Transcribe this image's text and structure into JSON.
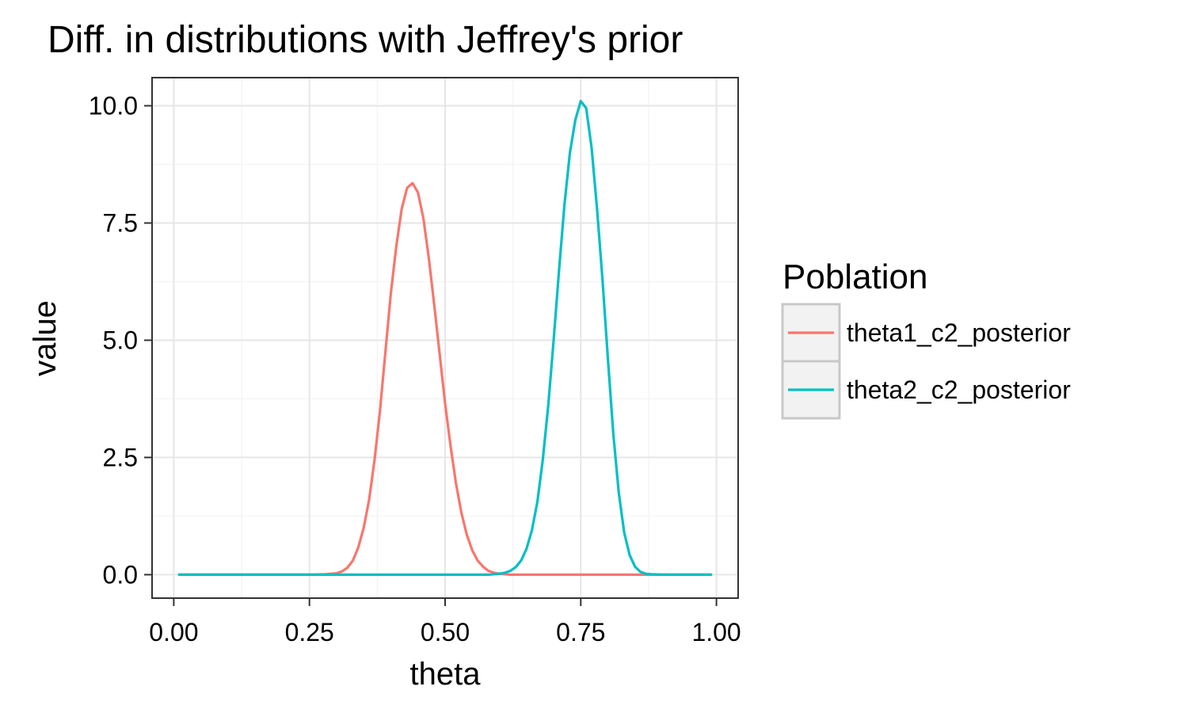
{
  "chart_data": {
    "type": "line",
    "title": "Diff. in distributions with Jeffrey's prior",
    "xlabel": "theta",
    "ylabel": "value",
    "xlim": [
      -0.04,
      1.04
    ],
    "ylim": [
      -0.5,
      10.6
    ],
    "x_ticks": [
      "0.00",
      "0.25",
      "0.50",
      "0.75",
      "1.00"
    ],
    "x_tick_values": [
      0,
      0.25,
      0.5,
      0.75,
      1.0
    ],
    "y_ticks": [
      "0.0",
      "2.5",
      "5.0",
      "7.5",
      "10.0"
    ],
    "y_tick_values": [
      0,
      2.5,
      5.0,
      7.5,
      10.0
    ],
    "grid": true,
    "legend": {
      "title": "Poblation",
      "position": "right"
    },
    "x": [
      0.01,
      0.05,
      0.1,
      0.15,
      0.2,
      0.25,
      0.28,
      0.3,
      0.31,
      0.32,
      0.33,
      0.34,
      0.35,
      0.36,
      0.37,
      0.38,
      0.39,
      0.4,
      0.41,
      0.42,
      0.43,
      0.44,
      0.45,
      0.46,
      0.47,
      0.48,
      0.49,
      0.5,
      0.51,
      0.52,
      0.53,
      0.54,
      0.55,
      0.56,
      0.57,
      0.58,
      0.59,
      0.6,
      0.61,
      0.62,
      0.63,
      0.64,
      0.65,
      0.66,
      0.67,
      0.68,
      0.69,
      0.7,
      0.71,
      0.72,
      0.73,
      0.74,
      0.75,
      0.76,
      0.77,
      0.78,
      0.79,
      0.8,
      0.81,
      0.82,
      0.83,
      0.84,
      0.85,
      0.86,
      0.87,
      0.88,
      0.9,
      0.95,
      0.99
    ],
    "series": [
      {
        "name": "theta1_c2_posterior",
        "color": "#F8766D",
        "values": [
          0,
          0,
          0,
          0,
          0,
          0,
          0.01,
          0.03,
          0.07,
          0.15,
          0.3,
          0.58,
          1.0,
          1.6,
          2.45,
          3.5,
          4.75,
          6.0,
          7.0,
          7.8,
          8.25,
          8.35,
          8.15,
          7.6,
          6.75,
          5.75,
          4.7,
          3.65,
          2.75,
          1.95,
          1.32,
          0.85,
          0.52,
          0.3,
          0.17,
          0.08,
          0.04,
          0.02,
          0.01,
          0,
          0,
          0,
          0,
          0,
          0,
          0,
          0,
          0,
          0,
          0,
          0,
          0,
          0,
          0,
          0,
          0,
          0,
          0,
          0,
          0,
          0,
          0,
          0,
          0,
          0,
          0,
          0,
          0,
          0
        ]
      },
      {
        "name": "theta2_c2_posterior",
        "color": "#00BFC4",
        "values": [
          0,
          0,
          0,
          0,
          0,
          0,
          0,
          0,
          0,
          0,
          0,
          0,
          0,
          0,
          0,
          0,
          0,
          0,
          0,
          0,
          0,
          0,
          0,
          0,
          0,
          0,
          0,
          0,
          0,
          0,
          0,
          0,
          0,
          0,
          0,
          0,
          0.01,
          0.02,
          0.04,
          0.08,
          0.16,
          0.3,
          0.55,
          0.95,
          1.55,
          2.45,
          3.6,
          5.0,
          6.5,
          7.9,
          9.0,
          9.7,
          10.1,
          9.95,
          9.1,
          7.8,
          6.3,
          4.6,
          3.0,
          1.75,
          0.9,
          0.42,
          0.17,
          0.06,
          0.02,
          0.01,
          0,
          0,
          0
        ]
      }
    ]
  }
}
